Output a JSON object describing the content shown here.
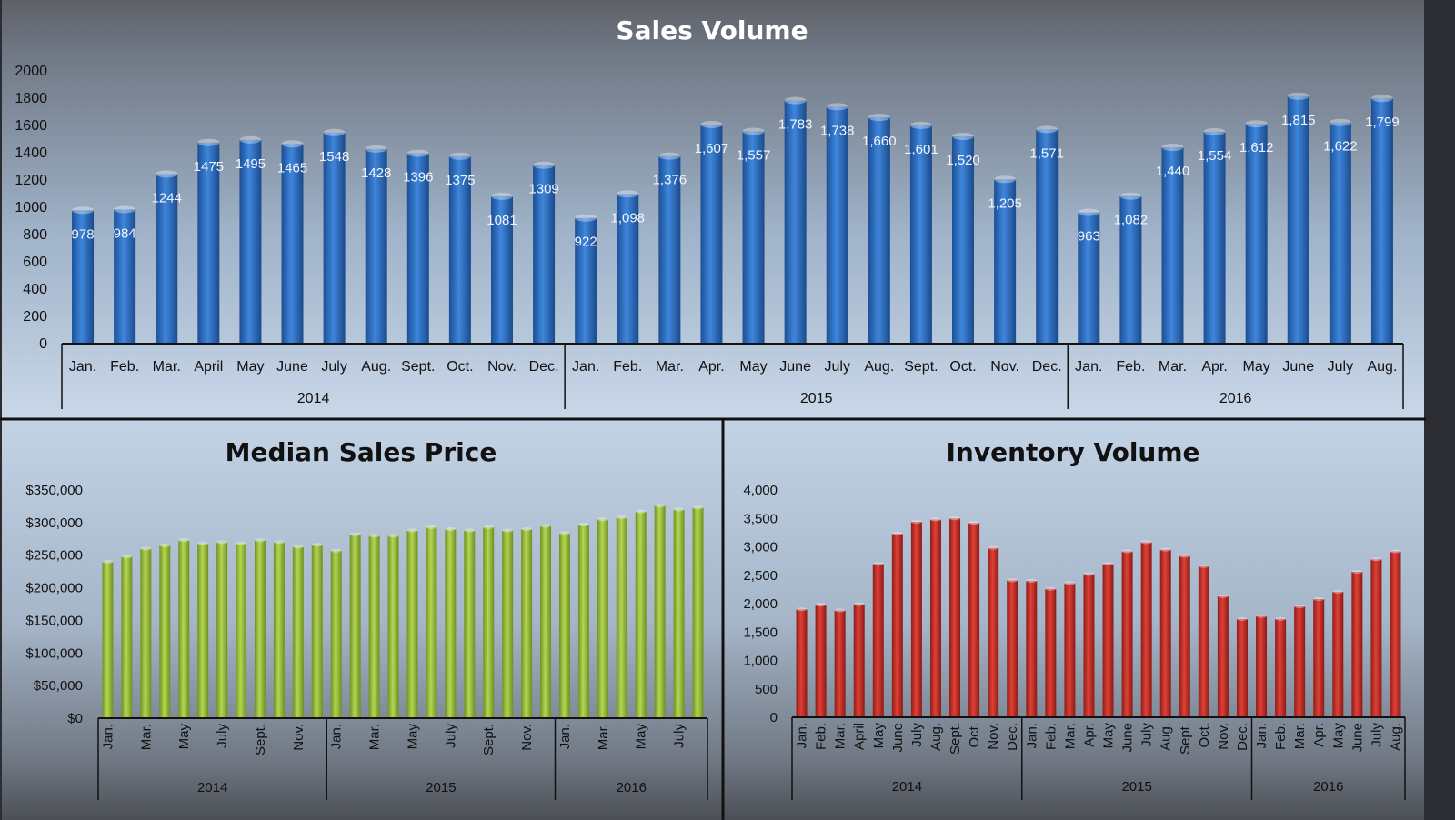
{
  "colors": {
    "sales_bar": "#2f6fc4",
    "price_bar": "#9bc23a",
    "inventory_bar": "#c9302a"
  },
  "chart_data": [
    {
      "id": "sales",
      "type": "bar",
      "title": "Sales Volume",
      "ylim": [
        0,
        2000
      ],
      "yticks": [
        "0",
        "200",
        "400",
        "600",
        "800",
        "1000",
        "1200",
        "1400",
        "1600",
        "1800",
        "2000"
      ],
      "categories": [
        "Jan.",
        "Feb.",
        "Mar.",
        "April",
        "May",
        "June",
        "July",
        "Aug.",
        "Sept.",
        "Oct.",
        "Nov.",
        "Dec.",
        "Jan.",
        "Feb.",
        "Mar.",
        "Apr.",
        "May",
        "June",
        "July",
        "Aug.",
        "Sept.",
        "Oct.",
        "Nov.",
        "Dec.",
        "Jan.",
        "Feb.",
        "Mar.",
        "Apr.",
        "May",
        "June",
        "July",
        "Aug."
      ],
      "values": [
        978,
        984,
        1244,
        1475,
        1495,
        1465,
        1548,
        1428,
        1396,
        1375,
        1081,
        1309,
        922,
        1098,
        1376,
        1607,
        1557,
        1783,
        1738,
        1660,
        1601,
        1520,
        1205,
        1571,
        963,
        1082,
        1440,
        1554,
        1612,
        1815,
        1622,
        1799
      ],
      "value_labels": [
        "978",
        "984",
        "1244",
        "1475",
        "1495",
        "1465",
        "1548",
        "1428",
        "1396",
        "1375",
        "1081",
        "1309",
        "922",
        "1,098",
        "1,376",
        "1,607",
        "1,557",
        "1,783",
        "1,738",
        "1,660",
        "1,601",
        "1,520",
        "1,205",
        "1,571",
        "963",
        "1,082",
        "1,440",
        "1,554",
        "1,612",
        "1,815",
        "1,622",
        "1,799"
      ],
      "groups": [
        {
          "label": "2014",
          "count": 12
        },
        {
          "label": "2015",
          "count": 12
        },
        {
          "label": "2016",
          "count": 8
        }
      ]
    },
    {
      "id": "price",
      "type": "bar",
      "title": "Median Sales Price",
      "ylim": [
        0,
        350000
      ],
      "yticks": [
        "$0",
        "$50,000",
        "$100,000",
        "$150,000",
        "$200,000",
        "$250,000",
        "$300,000",
        "$350,000"
      ],
      "categories": [
        "Jan.",
        "",
        "Mar.",
        "",
        "May",
        "",
        "July",
        "",
        "Sept.",
        "",
        "Nov.",
        "",
        "Jan.",
        "",
        "Mar.",
        "",
        "May",
        "",
        "July",
        "",
        "Sept.",
        "",
        "Nov.",
        "",
        "Jan.",
        "",
        "Mar.",
        "",
        "May",
        "",
        "July",
        ""
      ],
      "values": [
        240000,
        248000,
        260000,
        265000,
        273000,
        268000,
        270000,
        268000,
        273000,
        270000,
        263000,
        266000,
        257000,
        282000,
        280000,
        280000,
        288000,
        293000,
        290000,
        288000,
        293000,
        288000,
        290000,
        295000,
        284000,
        297000,
        305000,
        308000,
        317000,
        326000,
        320000,
        323000
      ],
      "groups": [
        {
          "label": "2014",
          "count": 12
        },
        {
          "label": "2015",
          "count": 12
        },
        {
          "label": "2016",
          "count": 8
        }
      ]
    },
    {
      "id": "inventory",
      "type": "bar",
      "title": "Inventory Volume",
      "ylim": [
        0,
        4000
      ],
      "yticks": [
        "0",
        "500",
        "1,000",
        "1,500",
        "2,000",
        "2,500",
        "3,000",
        "3,500",
        "4,000"
      ],
      "categories": [
        "Jan.",
        "Feb.",
        "Mar.",
        "April",
        "May",
        "June",
        "July",
        "Aug.",
        "Sept.",
        "Oct.",
        "Nov.",
        "Dec.",
        "Jan.",
        "Feb.",
        "Mar.",
        "Apr.",
        "May",
        "June",
        "July",
        "Aug.",
        "Sept.",
        "Oct.",
        "Nov.",
        "Dec.",
        "Jan.",
        "Feb.",
        "Mar.",
        "Apr.",
        "May",
        "June",
        "July",
        "Aug."
      ],
      "values": [
        1900,
        1980,
        1880,
        1990,
        2700,
        3230,
        3440,
        3480,
        3500,
        3420,
        2980,
        2410,
        2400,
        2260,
        2360,
        2520,
        2700,
        2920,
        3080,
        2950,
        2840,
        2660,
        2130,
        1730,
        1780,
        1730,
        1950,
        2080,
        2210,
        2560,
        2780,
        2920
      ],
      "groups": [
        {
          "label": "2014",
          "count": 12
        },
        {
          "label": "2015",
          "count": 12
        },
        {
          "label": "2016",
          "count": 8
        }
      ]
    }
  ]
}
